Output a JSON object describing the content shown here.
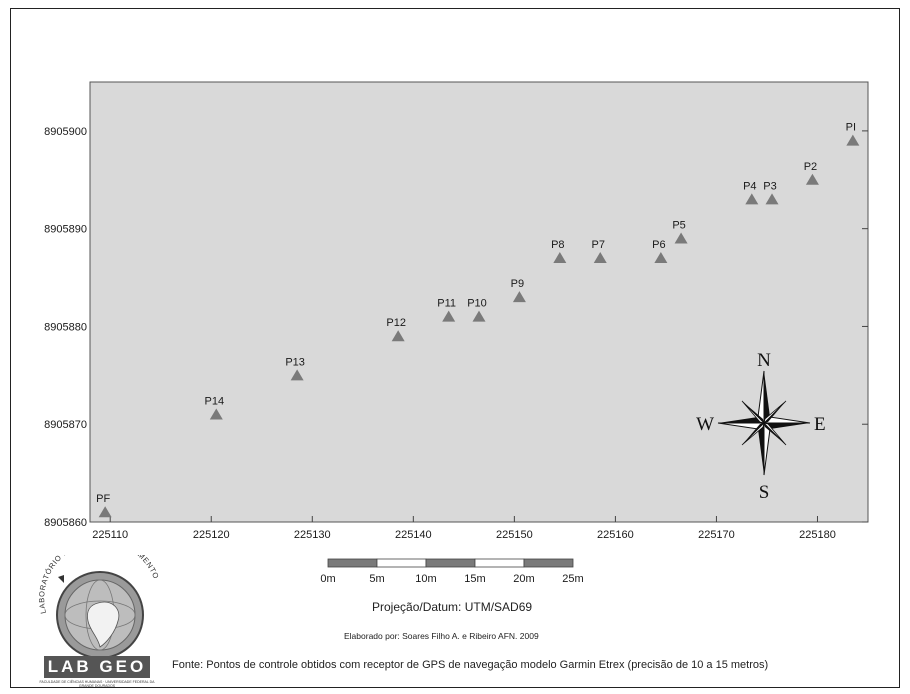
{
  "chart_data": {
    "type": "scatter",
    "marker": "triangle",
    "marker_color": "#7a7a7a",
    "plot_background": "#d9d9d9",
    "xlim": [
      225108,
      225185
    ],
    "ylim": [
      8905860,
      8905905
    ],
    "x_ticks": [
      225110,
      225120,
      225130,
      225140,
      225150,
      225160,
      225170,
      225180
    ],
    "y_ticks": [
      8905860,
      8905870,
      8905880,
      8905890,
      8905900
    ],
    "points": [
      {
        "label": "PI",
        "x": 225183.5,
        "y": 8905899
      },
      {
        "label": "P2",
        "x": 225179.5,
        "y": 8905895
      },
      {
        "label": "P3",
        "x": 225175.5,
        "y": 8905893
      },
      {
        "label": "P4",
        "x": 225173.5,
        "y": 8905893
      },
      {
        "label": "P5",
        "x": 225166.5,
        "y": 8905889
      },
      {
        "label": "P6",
        "x": 225164.5,
        "y": 8905887
      },
      {
        "label": "P7",
        "x": 225158.5,
        "y": 8905887
      },
      {
        "label": "P8",
        "x": 225154.5,
        "y": 8905887
      },
      {
        "label": "P9",
        "x": 225150.5,
        "y": 8905883
      },
      {
        "label": "P10",
        "x": 225146.5,
        "y": 8905881
      },
      {
        "label": "P11",
        "x": 225143.5,
        "y": 8905881
      },
      {
        "label": "P12",
        "x": 225138.5,
        "y": 8905879
      },
      {
        "label": "P13",
        "x": 225128.5,
        "y": 8905875
      },
      {
        "label": "P14",
        "x": 225120.5,
        "y": 8905871
      },
      {
        "label": "PF",
        "x": 225109.5,
        "y": 8905861
      }
    ]
  },
  "compass": {
    "north": "N",
    "south": "S",
    "east": "E",
    "west": "W"
  },
  "scale_bar": {
    "labels": [
      "0m",
      "5m",
      "10m",
      "15m",
      "20m",
      "25m"
    ]
  },
  "footer": {
    "projection": "Projeção/Datum: UTM/SAD69",
    "author": "Elaborado por: Soares Filho A. e Ribeiro AFN. 2009",
    "source": "Fonte: Pontos de controle obtidos com receptor de GPS de navegação modelo Garmin Etrex (precisão de 10 a 15 metros)"
  },
  "logo": {
    "arc_text": "LABORATÓRIO DE GEOPROCESSAMENTO",
    "name": "LAB GEO",
    "subtitle": "FACULDADE DE CIÊNCIAS HUMANAS · UNIVERSIDADE FEDERAL DA GRANDE DOURADOS"
  }
}
